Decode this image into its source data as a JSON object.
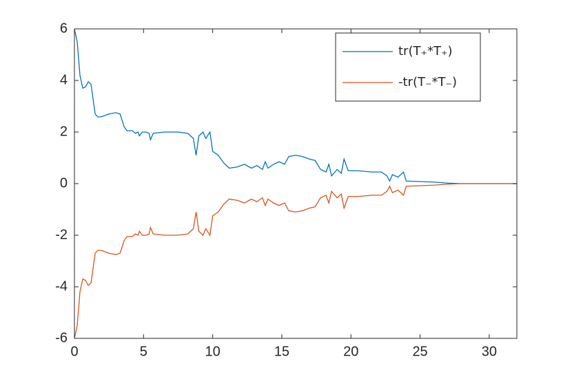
{
  "chart_data": {
    "type": "line",
    "x": [
      0,
      0.2,
      0.4,
      0.6,
      0.8,
      1.0,
      1.2,
      1.5,
      1.7,
      2.0,
      2.5,
      3.0,
      3.3,
      3.6,
      3.8,
      4.2,
      4.4,
      4.6,
      4.7,
      4.9,
      5.2,
      5.4,
      5.5,
      5.7,
      6.5,
      7.5,
      8.2,
      8.6,
      8.8,
      9.0,
      9.3,
      9.5,
      9.8,
      10.0,
      10.4,
      10.8,
      11.2,
      11.8,
      12.3,
      12.8,
      13.2,
      13.6,
      13.8,
      14.0,
      14.4,
      14.8,
      15.2,
      15.5,
      16.0,
      16.5,
      17.0,
      17.4,
      17.8,
      18.2,
      18.4,
      18.6,
      19.0,
      19.3,
      19.5,
      19.8,
      20.5,
      21.5,
      22.2,
      22.6,
      22.8,
      23.0,
      23.4,
      23.8,
      24.0,
      25.0,
      26.0,
      27.0,
      28.0,
      32.0
    ],
    "series": [
      {
        "name": "tr(T₊*T₊)",
        "color": "#0072bd",
        "values": [
          6.0,
          5.5,
          4.2,
          3.7,
          3.75,
          3.95,
          3.85,
          2.7,
          2.58,
          2.6,
          2.7,
          2.75,
          2.7,
          2.2,
          2.05,
          2.05,
          1.95,
          2.0,
          1.85,
          2.0,
          2.0,
          1.95,
          1.7,
          1.95,
          2.0,
          2.0,
          1.95,
          1.75,
          1.1,
          1.85,
          2.0,
          1.75,
          2.0,
          1.25,
          1.1,
          0.8,
          0.6,
          0.65,
          0.75,
          0.6,
          0.7,
          0.55,
          0.85,
          0.6,
          0.75,
          0.85,
          0.75,
          1.05,
          1.1,
          1.05,
          0.95,
          0.9,
          0.55,
          0.45,
          0.75,
          0.3,
          0.55,
          0.4,
          0.95,
          0.5,
          0.5,
          0.45,
          0.45,
          0.3,
          0.1,
          0.35,
          0.25,
          0.45,
          0.1,
          0.08,
          0.06,
          0.02,
          0,
          0
        ]
      },
      {
        "name": "-tr(T₋*T₋)",
        "color": "#d95319",
        "values": [
          -6.0,
          -5.5,
          -4.2,
          -3.7,
          -3.75,
          -3.95,
          -3.85,
          -2.7,
          -2.58,
          -2.6,
          -2.7,
          -2.75,
          -2.7,
          -2.2,
          -2.05,
          -2.05,
          -1.95,
          -2.0,
          -1.85,
          -2.0,
          -2.0,
          -1.95,
          -1.7,
          -1.95,
          -2.0,
          -2.0,
          -1.95,
          -1.75,
          -1.1,
          -1.85,
          -2.0,
          -1.75,
          -2.0,
          -1.25,
          -1.1,
          -0.8,
          -0.6,
          -0.65,
          -0.75,
          -0.6,
          -0.7,
          -0.55,
          -0.85,
          -0.6,
          -0.75,
          -0.85,
          -0.75,
          -1.05,
          -1.1,
          -1.05,
          -0.95,
          -0.9,
          -0.55,
          -0.45,
          -0.75,
          -0.3,
          -0.55,
          -0.4,
          -0.95,
          -0.5,
          -0.5,
          -0.45,
          -0.45,
          -0.3,
          -0.1,
          -0.35,
          -0.25,
          -0.45,
          -0.1,
          -0.08,
          -0.06,
          -0.02,
          0,
          0
        ]
      }
    ],
    "xlim": [
      0,
      32
    ],
    "xticks": [
      0,
      5,
      10,
      15,
      20,
      25,
      30
    ],
    "ylim": [
      -6,
      6
    ],
    "yticks": [
      -6,
      -4,
      -2,
      0,
      2,
      4,
      6
    ],
    "grid": false,
    "legend": "northeast"
  }
}
